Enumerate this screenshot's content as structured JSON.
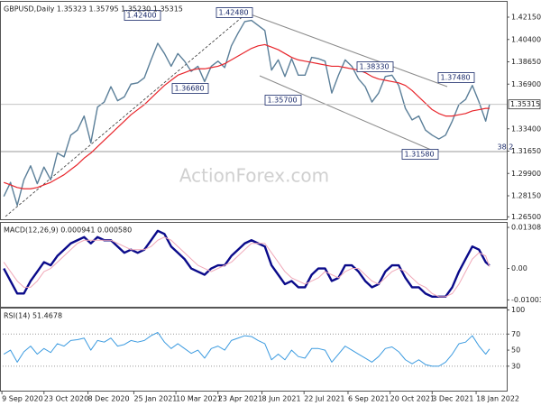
{
  "chart_data": [
    {
      "type": "line",
      "title": "GBPUSD,Daily 1.35323 1.35795 1.35230 1.35315",
      "x": [
        "2020-09-11",
        "2020-09-18",
        "2020-09-25",
        "2020-10-02",
        "2020-10-09",
        "2020-10-16",
        "2020-10-23",
        "2020-10-30",
        "2020-11-06",
        "2020-11-13",
        "2020-11-20",
        "2020-11-27",
        "2020-12-04",
        "2020-12-11",
        "2020-12-18",
        "2020-12-25",
        "2021-01-01",
        "2021-01-08",
        "2021-01-15",
        "2021-01-22",
        "2021-01-29",
        "2021-02-05",
        "2021-02-12",
        "2021-02-19",
        "2021-02-26",
        "2021-03-05",
        "2021-03-12",
        "2021-03-19",
        "2021-03-26",
        "2021-04-02",
        "2021-04-09",
        "2021-04-16",
        "2021-04-23",
        "2021-04-30",
        "2021-05-07",
        "2021-05-14",
        "2021-05-21",
        "2021-05-28",
        "2021-06-04",
        "2021-06-11",
        "2021-06-18",
        "2021-06-25",
        "2021-07-02",
        "2021-07-09",
        "2021-07-16",
        "2021-07-23",
        "2021-07-30",
        "2021-08-06",
        "2021-08-13",
        "2021-08-20",
        "2021-08-27",
        "2021-09-03",
        "2021-09-10",
        "2021-09-17",
        "2021-09-24",
        "2021-10-01",
        "2021-10-08",
        "2021-10-15",
        "2021-10-22",
        "2021-10-29",
        "2021-11-05",
        "2021-11-12",
        "2021-11-19",
        "2021-11-26",
        "2021-12-03",
        "2021-12-10",
        "2021-12-17",
        "2021-12-24",
        "2021-12-31",
        "2022-01-07",
        "2022-01-14",
        "2022-01-21",
        "2022-01-28",
        "2022-02-01"
      ],
      "series": [
        {
          "color": "#5b7f99",
          "values": [
            1.281,
            1.292,
            1.274,
            1.294,
            1.305,
            1.291,
            1.304,
            1.294,
            1.315,
            1.312,
            1.329,
            1.333,
            1.344,
            1.323,
            1.351,
            1.355,
            1.367,
            1.356,
            1.359,
            1.369,
            1.37,
            1.374,
            1.388,
            1.401,
            1.393,
            1.383,
            1.393,
            1.387,
            1.379,
            1.383,
            1.371,
            1.383,
            1.387,
            1.382,
            1.399,
            1.409,
            1.418,
            1.419,
            1.415,
            1.411,
            1.38,
            1.388,
            1.375,
            1.389,
            1.376,
            1.376,
            1.39,
            1.389,
            1.387,
            1.362,
            1.376,
            1.388,
            1.383,
            1.373,
            1.367,
            1.355,
            1.362,
            1.375,
            1.376,
            1.368,
            1.35,
            1.341,
            1.344,
            1.333,
            1.329,
            1.326,
            1.329,
            1.34,
            1.353,
            1.357,
            1.368,
            1.355,
            1.34,
            1.35315
          ]
        },
        {
          "color": "#e8252b",
          "values": [
            1.292,
            1.29,
            1.288,
            1.287,
            1.287,
            1.288,
            1.29,
            1.292,
            1.295,
            1.298,
            1.302,
            1.306,
            1.311,
            1.315,
            1.32,
            1.325,
            1.33,
            1.335,
            1.34,
            1.345,
            1.349,
            1.353,
            1.358,
            1.363,
            1.368,
            1.372,
            1.376,
            1.378,
            1.38,
            1.381,
            1.381,
            1.382,
            1.383,
            1.385,
            1.388,
            1.391,
            1.394,
            1.397,
            1.399,
            1.4,
            1.398,
            1.396,
            1.393,
            1.39,
            1.388,
            1.387,
            1.386,
            1.385,
            1.384,
            1.383,
            1.383,
            1.382,
            1.381,
            1.38,
            1.378,
            1.375,
            1.373,
            1.372,
            1.371,
            1.37,
            1.368,
            1.364,
            1.359,
            1.354,
            1.349,
            1.346,
            1.344,
            1.344,
            1.345,
            1.346,
            1.348,
            1.349,
            1.35,
            1.35
          ]
        }
      ],
      "ylim": [
        1.26312,
        1.43352
      ],
      "yticks": [
        {
          "value": 1.4215,
          "label": "1.42150"
        },
        {
          "value": 1.404,
          "label": "1.40400"
        },
        {
          "value": 1.3865,
          "label": "1.38650"
        },
        {
          "value": 1.369,
          "label": "1.36900"
        },
        {
          "value": 1.334,
          "label": "1.33400"
        },
        {
          "value": 1.3165,
          "label": "1.31650"
        },
        {
          "value": 1.299,
          "label": "1.29900"
        },
        {
          "value": 1.2815,
          "label": "1.28150"
        },
        {
          "value": 1.265,
          "label": "1.26500"
        }
      ],
      "last_price": 1.35315,
      "xlim": [
        "2020-09-07",
        "2022-02-19"
      ],
      "xticks": [
        {
          "value": "2020-09-09",
          "label": "9 Sep 2020"
        },
        {
          "value": "2020-10-23",
          "label": "23 Oct 2020"
        },
        {
          "value": "2020-12-08",
          "label": "8 Dec 2020"
        },
        {
          "value": "2021-01-25",
          "label": "25 Jan 2021"
        },
        {
          "value": "2021-03-10",
          "label": "10 Mar 2021"
        },
        {
          "value": "2021-04-23",
          "label": "23 Apr 2021"
        },
        {
          "value": "2021-06-08",
          "label": "8 Jun 2021"
        },
        {
          "value": "2021-07-22",
          "label": "22 Jul 2021"
        },
        {
          "value": "2021-09-06",
          "label": "6 Sep 2021"
        },
        {
          "value": "2021-10-20",
          "label": "20 Oct 2021"
        },
        {
          "value": "2021-12-03",
          "label": "3 Dec 2021"
        },
        {
          "value": "2022-01-18",
          "label": "18 Jan 2022"
        }
      ],
      "annotations": [
        "1.42400",
        "1.42480",
        "1.36680",
        "1.35700",
        "1.38330",
        "1.37480",
        "1.31580",
        "38.2",
        "50"
      ],
      "watermark": "ActionForex.com"
    },
    {
      "type": "line",
      "title": "MACD(12,26,9) 0.000941 0.000580",
      "series": [
        {
          "color": "#0a0a8a",
          "values": [
            0,
            -0.004,
            -0.008,
            -0.008,
            -0.004,
            -0.001,
            0.002,
            0.001,
            0.004,
            0.006,
            0.008,
            0.009,
            0.01,
            0.008,
            0.01,
            0.009,
            0.009,
            0.007,
            0.005,
            0.006,
            0.005,
            0.006,
            0.009,
            0.012,
            0.011,
            0.007,
            0.005,
            0.003,
            0,
            -0.001,
            -0.002,
            0,
            0.001,
            0.001,
            0.004,
            0.006,
            0.008,
            0.009,
            0.008,
            0.007,
            0.001,
            -0.002,
            -0.005,
            -0.004,
            -0.006,
            -0.006,
            -0.002,
            0,
            0,
            -0.004,
            -0.003,
            0.001,
            0.001,
            -0.001,
            -0.004,
            -0.006,
            -0.005,
            -0.001,
            0.001,
            0.001,
            -0.003,
            -0.006,
            -0.006,
            -0.008,
            -0.009,
            -0.009,
            -0.009,
            -0.006,
            -0.001,
            0.003,
            0.007,
            0.006,
            0.002,
            0.000941
          ]
        },
        {
          "color": "#f0a8b8",
          "values": [
            0.002,
            -0.001,
            -0.004,
            -0.006,
            -0.006,
            -0.004,
            -0.001,
            0,
            0.002,
            0.004,
            0.006,
            0.008,
            0.009,
            0.009,
            0.009,
            0.009,
            0.009,
            0.008,
            0.007,
            0.006,
            0.006,
            0.006,
            0.007,
            0.009,
            0.01,
            0.009,
            0.007,
            0.005,
            0.003,
            0.001,
            0,
            -0.001,
            0,
            0.001,
            0.002,
            0.004,
            0.006,
            0.008,
            0.008,
            0.008,
            0.005,
            0.002,
            -0.001,
            -0.003,
            -0.004,
            -0.005,
            -0.004,
            -0.003,
            -0.001,
            -0.002,
            -0.003,
            -0.001,
            0,
            0,
            -0.002,
            -0.004,
            -0.005,
            -0.003,
            -0.001,
            0,
            -0.001,
            -0.003,
            -0.005,
            -0.006,
            -0.008,
            -0.009,
            -0.009,
            -0.008,
            -0.005,
            -0.001,
            0.003,
            0.005,
            0.004,
            0.00058
          ]
        }
      ],
      "ylim": [
        -0.01221,
        0.01454
      ],
      "yticks": [
        0.013083,
        {
          "value": 0,
          "label": "0.00"
        },
        -0.01003
      ]
    },
    {
      "type": "line",
      "title": "RSI(14) 51.4678",
      "series": [
        {
          "color": "#3c9be0",
          "values": [
            45,
            50,
            35,
            48,
            55,
            45,
            52,
            47,
            58,
            55,
            62,
            63,
            65,
            50,
            62,
            60,
            65,
            55,
            57,
            62,
            60,
            62,
            68,
            72,
            60,
            52,
            58,
            52,
            46,
            50,
            40,
            52,
            55,
            50,
            62,
            65,
            68,
            67,
            62,
            58,
            38,
            45,
            38,
            50,
            42,
            40,
            52,
            52,
            50,
            35,
            45,
            55,
            50,
            45,
            40,
            35,
            42,
            52,
            54,
            48,
            38,
            33,
            38,
            32,
            30,
            30,
            35,
            45,
            58,
            60,
            68,
            55,
            45,
            51.4678
          ]
        }
      ],
      "ylim": [
        -0.5,
        101.8
      ],
      "yticks": [
        100,
        70,
        50,
        30
      ],
      "levels": [
        70,
        30
      ]
    }
  ]
}
